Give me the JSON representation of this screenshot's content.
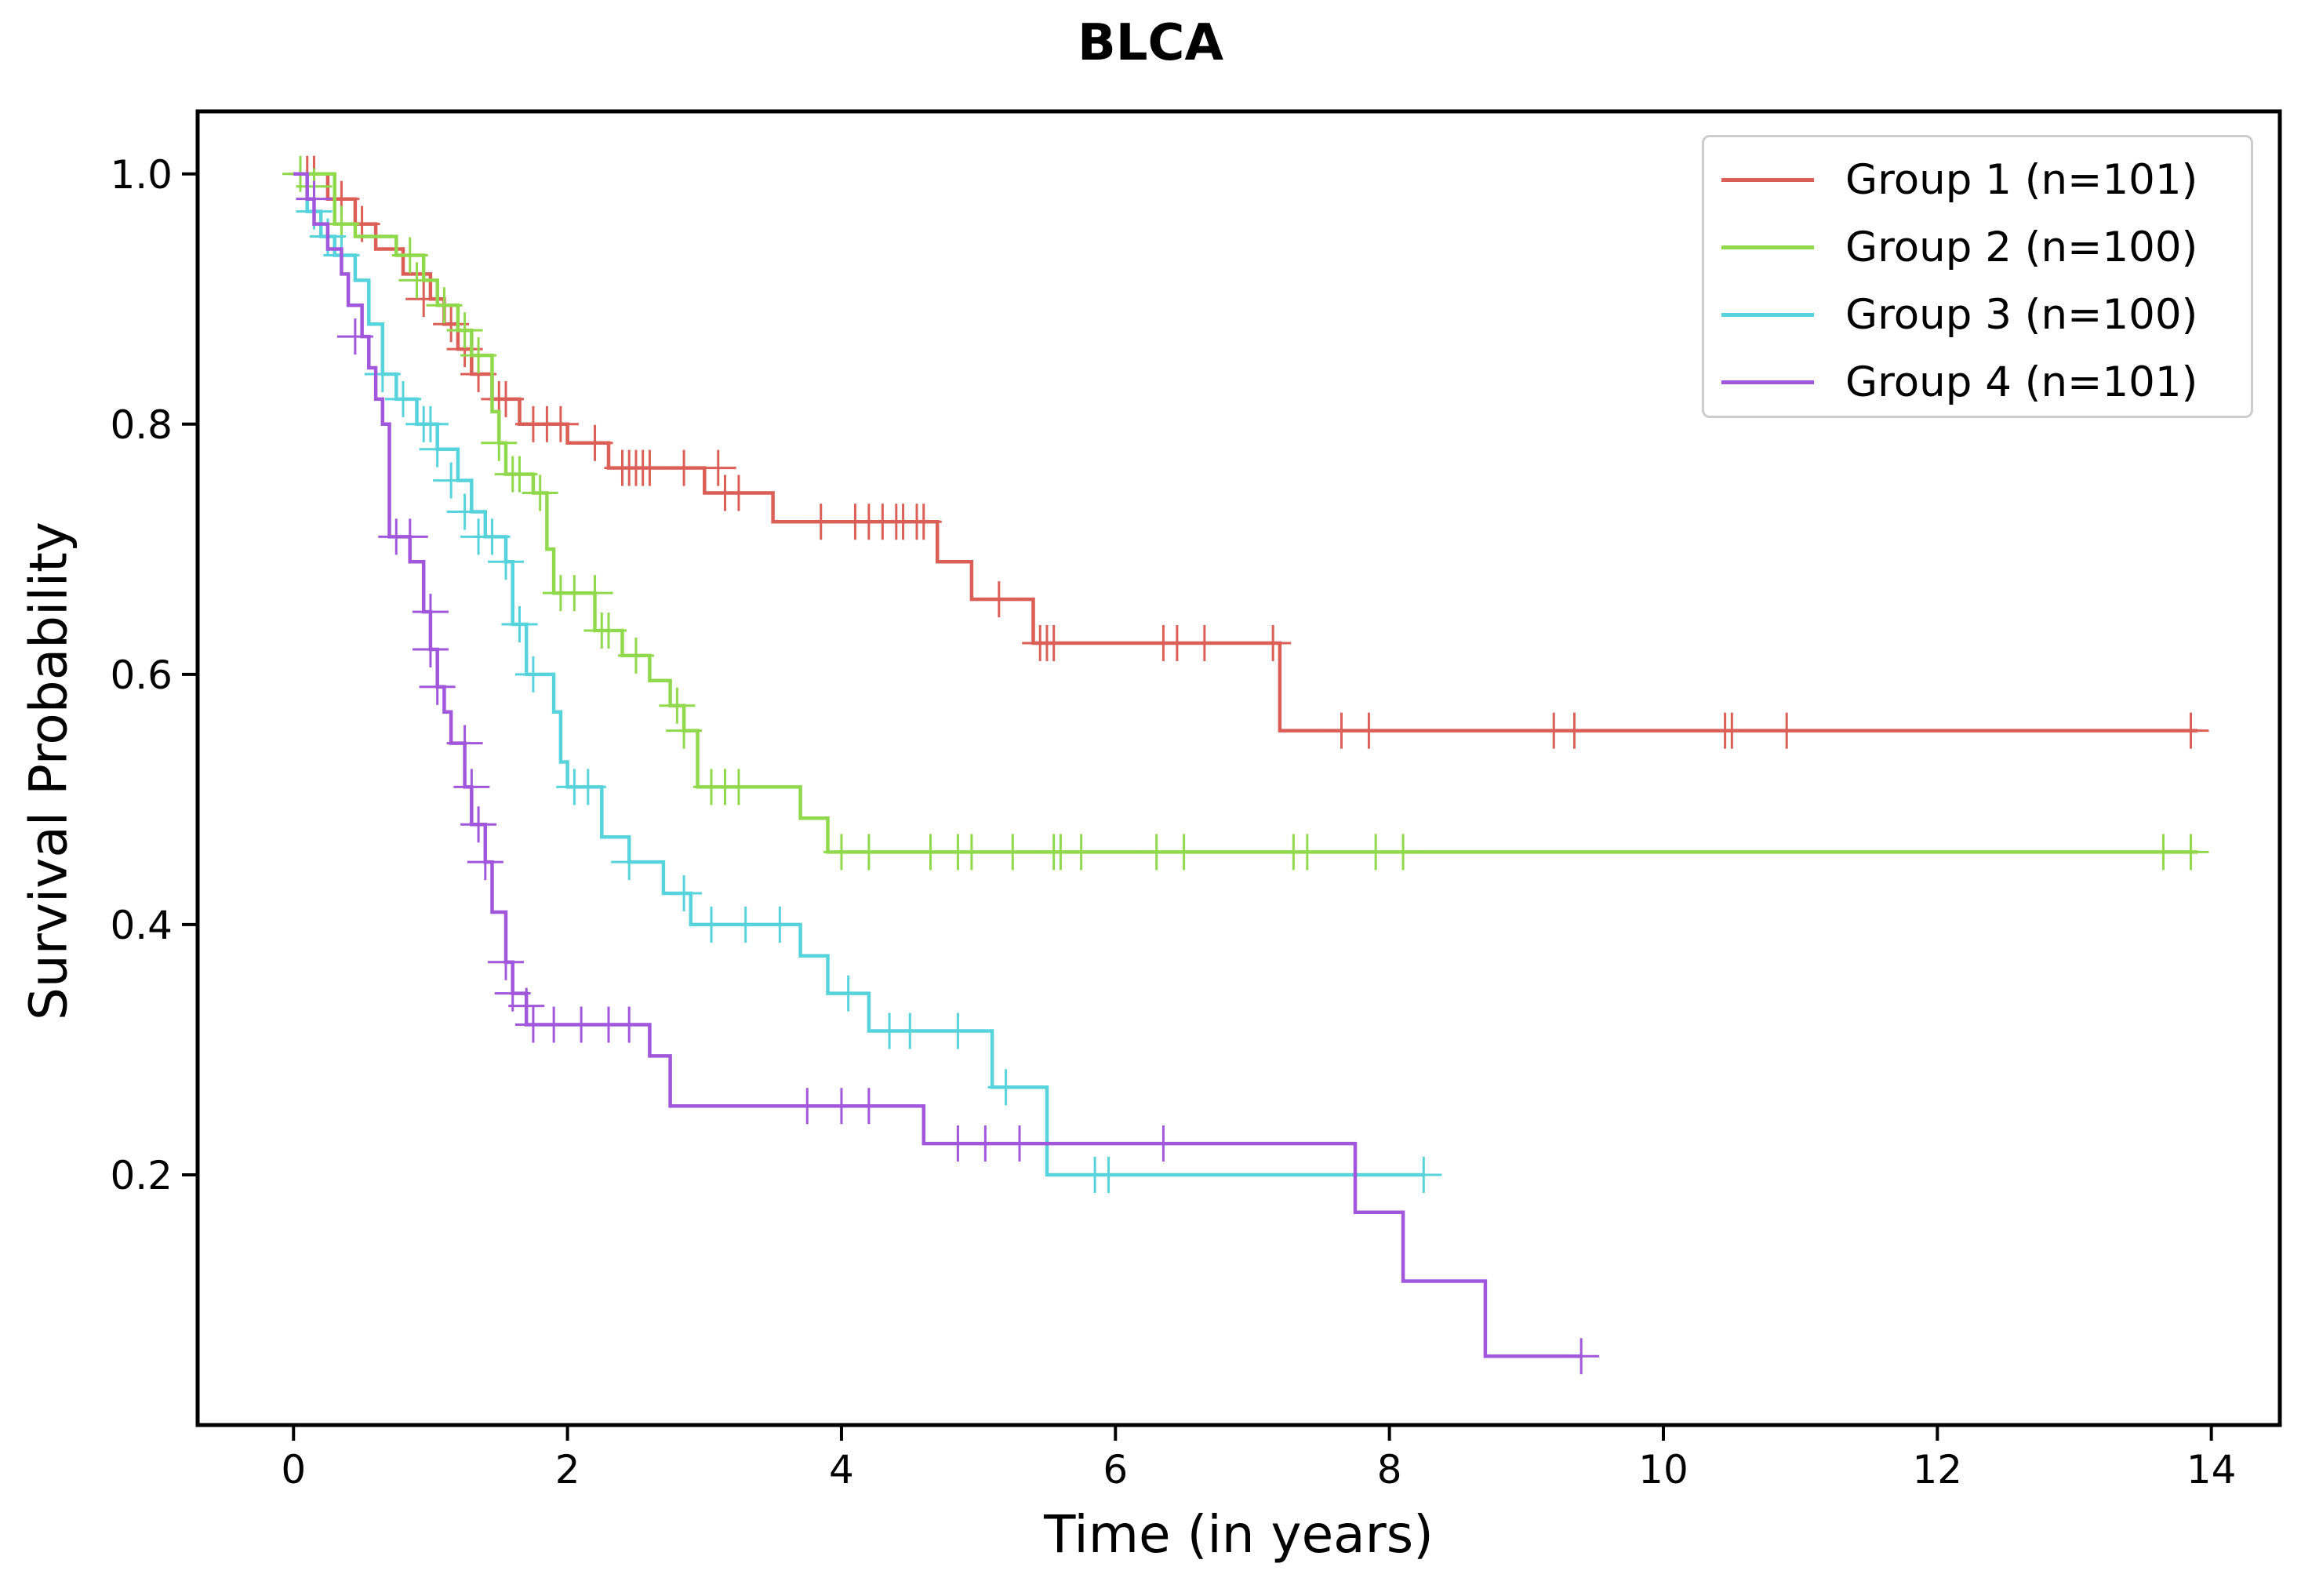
{
  "chart_data": {
    "type": "line",
    "title": "BLCA",
    "xlabel": "Time (in years)",
    "ylabel": "Survival Probability",
    "xlim": [
      -0.7,
      14.5
    ],
    "ylim": [
      0.0,
      1.05
    ],
    "xticks": [
      0,
      2,
      4,
      6,
      8,
      10,
      12,
      14
    ],
    "yticks": [
      0.2,
      0.4,
      0.6,
      0.8,
      1.0
    ],
    "xtick_labels": [
      "0",
      "2",
      "4",
      "6",
      "8",
      "10",
      "12",
      "14"
    ],
    "ytick_labels": [
      "0.2",
      "0.4",
      "0.6",
      "0.8",
      "1.0"
    ],
    "grid": false,
    "legend_position": "top-right",
    "series": [
      {
        "name": "Group 1 (n=101)",
        "color": "#db5f57",
        "steps": [
          [
            0,
            1.0
          ],
          [
            0.25,
            0.98
          ],
          [
            0.45,
            0.96
          ],
          [
            0.6,
            0.94
          ],
          [
            0.8,
            0.92
          ],
          [
            1.0,
            0.9
          ],
          [
            1.1,
            0.88
          ],
          [
            1.2,
            0.86
          ],
          [
            1.3,
            0.84
          ],
          [
            1.45,
            0.82
          ],
          [
            1.65,
            0.8
          ],
          [
            2.0,
            0.785
          ],
          [
            2.3,
            0.765
          ],
          [
            3.0,
            0.745
          ],
          [
            3.5,
            0.722
          ],
          [
            4.7,
            0.69
          ],
          [
            4.95,
            0.66
          ],
          [
            5.4,
            0.625
          ],
          [
            7.2,
            0.555
          ],
          [
            13.9,
            0.555
          ]
        ],
        "censored": [
          [
            0.1,
            1.0
          ],
          [
            0.15,
            1.0
          ],
          [
            0.35,
            0.98
          ],
          [
            0.5,
            0.96
          ],
          [
            0.95,
            0.9
          ],
          [
            1.15,
            0.88
          ],
          [
            1.25,
            0.86
          ],
          [
            1.35,
            0.84
          ],
          [
            1.5,
            0.82
          ],
          [
            1.55,
            0.82
          ],
          [
            1.75,
            0.8
          ],
          [
            1.85,
            0.8
          ],
          [
            1.95,
            0.8
          ],
          [
            2.2,
            0.785
          ],
          [
            2.4,
            0.765
          ],
          [
            2.45,
            0.765
          ],
          [
            2.5,
            0.765
          ],
          [
            2.55,
            0.765
          ],
          [
            2.6,
            0.765
          ],
          [
            2.85,
            0.765
          ],
          [
            3.1,
            0.765
          ],
          [
            3.15,
            0.745
          ],
          [
            3.25,
            0.745
          ],
          [
            3.85,
            0.722
          ],
          [
            4.1,
            0.722
          ],
          [
            4.2,
            0.722
          ],
          [
            4.3,
            0.722
          ],
          [
            4.4,
            0.722
          ],
          [
            4.45,
            0.722
          ],
          [
            4.55,
            0.722
          ],
          [
            4.6,
            0.722
          ],
          [
            5.15,
            0.66
          ],
          [
            5.45,
            0.625
          ],
          [
            5.5,
            0.625
          ],
          [
            5.55,
            0.625
          ],
          [
            6.35,
            0.625
          ],
          [
            6.45,
            0.625
          ],
          [
            6.65,
            0.625
          ],
          [
            7.15,
            0.625
          ],
          [
            7.65,
            0.555
          ],
          [
            7.85,
            0.555
          ],
          [
            9.2,
            0.555
          ],
          [
            9.35,
            0.555
          ],
          [
            10.45,
            0.555
          ],
          [
            10.5,
            0.555
          ],
          [
            10.9,
            0.555
          ],
          [
            13.85,
            0.555
          ]
        ]
      },
      {
        "name": "Group 2 (n=100)",
        "color": "#91d94c",
        "steps": [
          [
            0,
            1.0
          ],
          [
            0.3,
            0.96
          ],
          [
            0.45,
            0.95
          ],
          [
            0.75,
            0.935
          ],
          [
            0.95,
            0.915
          ],
          [
            1.05,
            0.895
          ],
          [
            1.2,
            0.875
          ],
          [
            1.3,
            0.855
          ],
          [
            1.45,
            0.81
          ],
          [
            1.5,
            0.785
          ],
          [
            1.55,
            0.76
          ],
          [
            1.75,
            0.745
          ],
          [
            1.85,
            0.7
          ],
          [
            1.9,
            0.665
          ],
          [
            2.2,
            0.635
          ],
          [
            2.4,
            0.615
          ],
          [
            2.6,
            0.595
          ],
          [
            2.75,
            0.575
          ],
          [
            2.85,
            0.555
          ],
          [
            2.95,
            0.51
          ],
          [
            3.7,
            0.485
          ],
          [
            3.9,
            0.458
          ],
          [
            13.9,
            0.458
          ]
        ],
        "censored": [
          [
            0.05,
            1.0
          ],
          [
            0.15,
            0.99
          ],
          [
            0.35,
            0.96
          ],
          [
            0.85,
            0.935
          ],
          [
            0.9,
            0.915
          ],
          [
            1.1,
            0.895
          ],
          [
            1.25,
            0.875
          ],
          [
            1.35,
            0.855
          ],
          [
            1.5,
            0.785
          ],
          [
            1.6,
            0.76
          ],
          [
            1.65,
            0.76
          ],
          [
            1.8,
            0.745
          ],
          [
            1.95,
            0.665
          ],
          [
            2.05,
            0.665
          ],
          [
            2.2,
            0.665
          ],
          [
            2.25,
            0.635
          ],
          [
            2.3,
            0.635
          ],
          [
            2.5,
            0.615
          ],
          [
            2.8,
            0.575
          ],
          [
            2.85,
            0.555
          ],
          [
            3.05,
            0.51
          ],
          [
            3.15,
            0.51
          ],
          [
            3.25,
            0.51
          ],
          [
            4.0,
            0.458
          ],
          [
            4.2,
            0.458
          ],
          [
            4.65,
            0.458
          ],
          [
            4.85,
            0.458
          ],
          [
            4.95,
            0.458
          ],
          [
            5.25,
            0.458
          ],
          [
            5.55,
            0.458
          ],
          [
            5.6,
            0.458
          ],
          [
            5.75,
            0.458
          ],
          [
            6.3,
            0.458
          ],
          [
            6.5,
            0.458
          ],
          [
            7.3,
            0.458
          ],
          [
            7.4,
            0.458
          ],
          [
            7.9,
            0.458
          ],
          [
            8.1,
            0.458
          ],
          [
            13.65,
            0.458
          ],
          [
            13.85,
            0.458
          ]
        ]
      },
      {
        "name": "Group 3 (n=100)",
        "color": "#57d3db",
        "steps": [
          [
            0,
            1.0
          ],
          [
            0.1,
            0.97
          ],
          [
            0.2,
            0.95
          ],
          [
            0.3,
            0.935
          ],
          [
            0.45,
            0.915
          ],
          [
            0.55,
            0.88
          ],
          [
            0.65,
            0.84
          ],
          [
            0.75,
            0.82
          ],
          [
            0.9,
            0.8
          ],
          [
            1.05,
            0.78
          ],
          [
            1.2,
            0.755
          ],
          [
            1.3,
            0.73
          ],
          [
            1.4,
            0.71
          ],
          [
            1.55,
            0.69
          ],
          [
            1.6,
            0.64
          ],
          [
            1.7,
            0.6
          ],
          [
            1.9,
            0.57
          ],
          [
            1.95,
            0.53
          ],
          [
            2.0,
            0.51
          ],
          [
            2.25,
            0.47
          ],
          [
            2.45,
            0.45
          ],
          [
            2.7,
            0.425
          ],
          [
            2.9,
            0.4
          ],
          [
            3.7,
            0.375
          ],
          [
            3.9,
            0.345
          ],
          [
            4.2,
            0.315
          ],
          [
            5.1,
            0.27
          ],
          [
            5.5,
            0.2
          ],
          [
            8.25,
            0.2
          ]
        ],
        "censored": [
          [
            0.15,
            0.97
          ],
          [
            0.25,
            0.95
          ],
          [
            0.35,
            0.935
          ],
          [
            0.65,
            0.84
          ],
          [
            0.8,
            0.82
          ],
          [
            0.95,
            0.8
          ],
          [
            1.0,
            0.8
          ],
          [
            1.05,
            0.78
          ],
          [
            1.15,
            0.755
          ],
          [
            1.25,
            0.73
          ],
          [
            1.35,
            0.71
          ],
          [
            1.45,
            0.71
          ],
          [
            1.55,
            0.69
          ],
          [
            1.65,
            0.64
          ],
          [
            1.75,
            0.6
          ],
          [
            2.05,
            0.51
          ],
          [
            2.15,
            0.51
          ],
          [
            2.45,
            0.45
          ],
          [
            2.85,
            0.425
          ],
          [
            3.05,
            0.4
          ],
          [
            3.3,
            0.4
          ],
          [
            3.55,
            0.4
          ],
          [
            4.05,
            0.345
          ],
          [
            4.35,
            0.315
          ],
          [
            4.5,
            0.315
          ],
          [
            4.85,
            0.315
          ],
          [
            5.2,
            0.27
          ],
          [
            5.85,
            0.2
          ],
          [
            5.95,
            0.2
          ],
          [
            8.25,
            0.2
          ]
        ]
      },
      {
        "name": "Group 4 (n=101)",
        "color": "#a157db",
        "steps": [
          [
            0,
            1.0
          ],
          [
            0.1,
            0.98
          ],
          [
            0.15,
            0.96
          ],
          [
            0.25,
            0.94
          ],
          [
            0.35,
            0.92
          ],
          [
            0.4,
            0.895
          ],
          [
            0.5,
            0.87
          ],
          [
            0.55,
            0.845
          ],
          [
            0.6,
            0.82
          ],
          [
            0.65,
            0.8
          ],
          [
            0.7,
            0.71
          ],
          [
            0.85,
            0.69
          ],
          [
            0.95,
            0.65
          ],
          [
            1.0,
            0.62
          ],
          [
            1.05,
            0.59
          ],
          [
            1.1,
            0.57
          ],
          [
            1.15,
            0.545
          ],
          [
            1.25,
            0.51
          ],
          [
            1.3,
            0.48
          ],
          [
            1.4,
            0.45
          ],
          [
            1.45,
            0.41
          ],
          [
            1.55,
            0.37
          ],
          [
            1.6,
            0.345
          ],
          [
            1.7,
            0.32
          ],
          [
            2.6,
            0.295
          ],
          [
            2.75,
            0.255
          ],
          [
            4.6,
            0.225
          ],
          [
            7.75,
            0.17
          ],
          [
            8.1,
            0.115
          ],
          [
            8.7,
            0.055
          ],
          [
            9.4,
            0.055
          ]
        ],
        "censored": [
          [
            0.15,
            0.98
          ],
          [
            0.45,
            0.87
          ],
          [
            0.75,
            0.71
          ],
          [
            0.85,
            0.71
          ],
          [
            1.0,
            0.65
          ],
          [
            1.0,
            0.62
          ],
          [
            1.05,
            0.59
          ],
          [
            1.25,
            0.545
          ],
          [
            1.3,
            0.51
          ],
          [
            1.35,
            0.48
          ],
          [
            1.4,
            0.45
          ],
          [
            1.55,
            0.37
          ],
          [
            1.6,
            0.345
          ],
          [
            1.7,
            0.335
          ],
          [
            1.75,
            0.32
          ],
          [
            1.9,
            0.32
          ],
          [
            2.1,
            0.32
          ],
          [
            2.3,
            0.32
          ],
          [
            2.45,
            0.32
          ],
          [
            3.75,
            0.255
          ],
          [
            4.0,
            0.255
          ],
          [
            4.2,
            0.255
          ],
          [
            4.85,
            0.225
          ],
          [
            5.05,
            0.225
          ],
          [
            5.3,
            0.225
          ],
          [
            6.35,
            0.225
          ],
          [
            9.4,
            0.055
          ]
        ]
      }
    ]
  }
}
